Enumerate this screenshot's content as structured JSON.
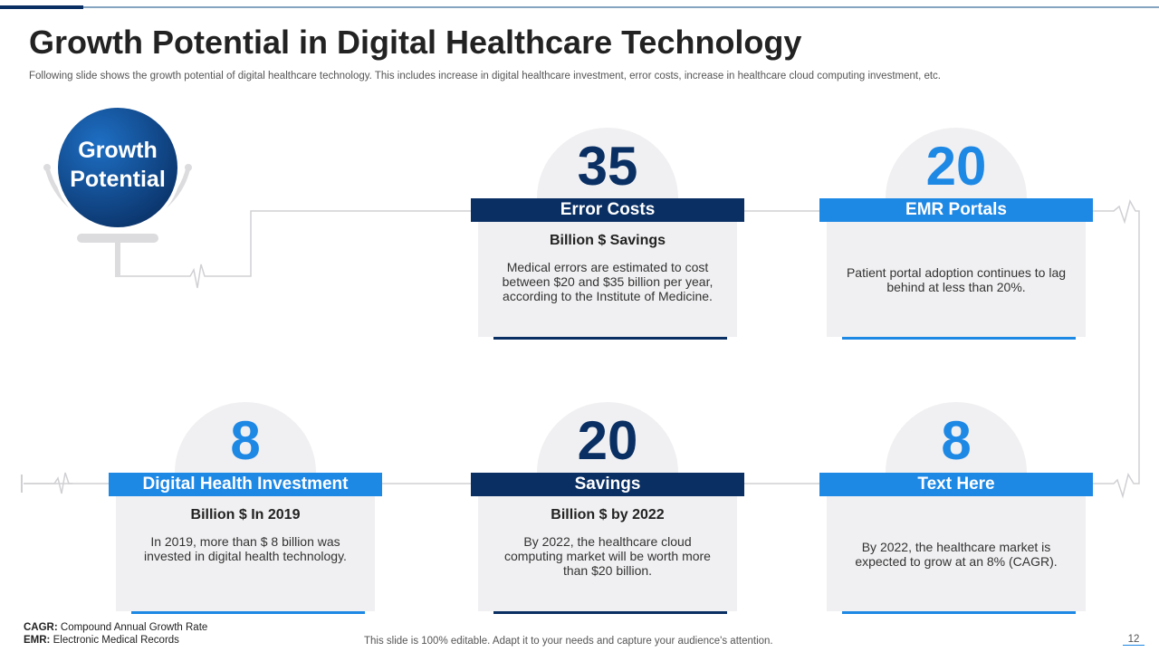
{
  "header": {
    "title": "Growth Potential in Digital Healthcare Technology",
    "subtitle": "Following slide shows the growth potential of digital healthcare technology. This includes increase in digital healthcare investment, error costs, increase in healthcare cloud computing investment, etc."
  },
  "badge": {
    "lines": [
      "Growth",
      "Potential"
    ]
  },
  "cards": [
    {
      "number": 35,
      "title": "Error Costs",
      "subtitle": "Billion $ Savings",
      "body": "Medical errors are estimated to cost between $20 and $35 billion per year, according to the Institute of Medicine."
    },
    {
      "number": 20,
      "title": "EMR Portals",
      "body": "Patient portal adoption continues to lag behind at less than 20%."
    },
    {
      "number": 8,
      "title": "Digital Health Investment",
      "subtitle": "Billion $ In 2019",
      "body": "In 2019, more than $ 8 billion was invested in digital health technology."
    },
    {
      "number": 20,
      "title": "Savings",
      "subtitle": "Billion $ by 2022",
      "body": "By 2022, the healthcare cloud computing market will be worth more than $20 billion."
    },
    {
      "number": 8,
      "title": "Text Here",
      "body": "By 2022, the healthcare market is expected to grow at an 8% (CAGR)."
    }
  ],
  "footnotes": [
    {
      "term": "CAGR:",
      "text": "Compound  Annual Growth Rate"
    },
    {
      "term": "EMR:",
      "text": "Electronic Medical Records"
    }
  ],
  "footer": {
    "text": "This slide is 100% editable. Adapt it to your needs and capture your audience's attention.",
    "page": 12
  }
}
